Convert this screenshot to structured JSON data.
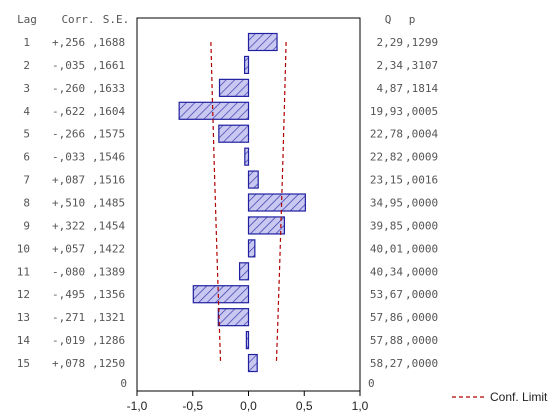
{
  "chart_data": {
    "type": "bar",
    "orientation": "horizontal",
    "headers": {
      "lag": "Lag",
      "corr": "Corr.",
      "se": "S.E.",
      "q": "Q",
      "p": "p"
    },
    "rows": [
      {
        "lag": "1",
        "corr": "+,256",
        "se": ",1688",
        "q": "2,29",
        "p": ",1299",
        "value": 0.256,
        "conf": 0.3376
      },
      {
        "lag": "2",
        "corr": "-,035",
        "se": ",1661",
        "q": "2,34",
        "p": ",3107",
        "value": -0.035,
        "conf": 0.3322
      },
      {
        "lag": "3",
        "corr": "-,260",
        "se": ",1633",
        "q": "4,87",
        "p": ",1814",
        "value": -0.26,
        "conf": 0.3266
      },
      {
        "lag": "4",
        "corr": "-,622",
        "se": ",1604",
        "q": "19,93",
        "p": ",0005",
        "value": -0.622,
        "conf": 0.3208
      },
      {
        "lag": "5",
        "corr": "-,266",
        "se": ",1575",
        "q": "22,78",
        "p": ",0004",
        "value": -0.266,
        "conf": 0.315
      },
      {
        "lag": "6",
        "corr": "-,033",
        "se": ",1546",
        "q": "22,82",
        "p": ",0009",
        "value": -0.033,
        "conf": 0.3092
      },
      {
        "lag": "7",
        "corr": "+,087",
        "se": ",1516",
        "q": "23,15",
        "p": ",0016",
        "value": 0.087,
        "conf": 0.3032
      },
      {
        "lag": "8",
        "corr": "+,510",
        "se": ",1485",
        "q": "34,95",
        "p": ",0000",
        "value": 0.51,
        "conf": 0.297
      },
      {
        "lag": "9",
        "corr": "+,322",
        "se": ",1454",
        "q": "39,85",
        "p": ",0000",
        "value": 0.322,
        "conf": 0.2908
      },
      {
        "lag": "10",
        "corr": "+,057",
        "se": ",1422",
        "q": "40,01",
        "p": ",0000",
        "value": 0.057,
        "conf": 0.2844
      },
      {
        "lag": "11",
        "corr": "-,080",
        "se": ",1389",
        "q": "40,34",
        "p": ",0000",
        "value": -0.08,
        "conf": 0.2778
      },
      {
        "lag": "12",
        "corr": "-,495",
        "se": ",1356",
        "q": "53,67",
        "p": ",0000",
        "value": -0.495,
        "conf": 0.2712
      },
      {
        "lag": "13",
        "corr": "-,271",
        "se": ",1321",
        "q": "57,86",
        "p": ",0000",
        "value": -0.271,
        "conf": 0.2642
      },
      {
        "lag": "14",
        "corr": "-,019",
        "se": ",1286",
        "q": "57,88",
        "p": ",0000",
        "value": -0.019,
        "conf": 0.2572
      },
      {
        "lag": "15",
        "corr": "+,078",
        "se": ",1250",
        "q": "58,27",
        "p": ",0000",
        "value": 0.078,
        "conf": 0.25
      }
    ],
    "extra_row_labels": {
      "left": "0",
      "right": "0"
    },
    "x_ticks": [
      "-1,0",
      "-0,5",
      "0,0",
      "0,5",
      "1,0"
    ],
    "x_tick_values": [
      -1.0,
      -0.5,
      0.0,
      0.5,
      1.0
    ],
    "xlim": [
      -1.0,
      1.0
    ],
    "legend": {
      "label": "Conf. Limit",
      "position": "bottom-right"
    },
    "grid": false,
    "colors": {
      "bar_fill": "#c8c8f0",
      "bar_stroke": "#2020a0",
      "hatch": "#3a3ab0",
      "conf_line": "#b00000",
      "axis": "#000000"
    }
  }
}
